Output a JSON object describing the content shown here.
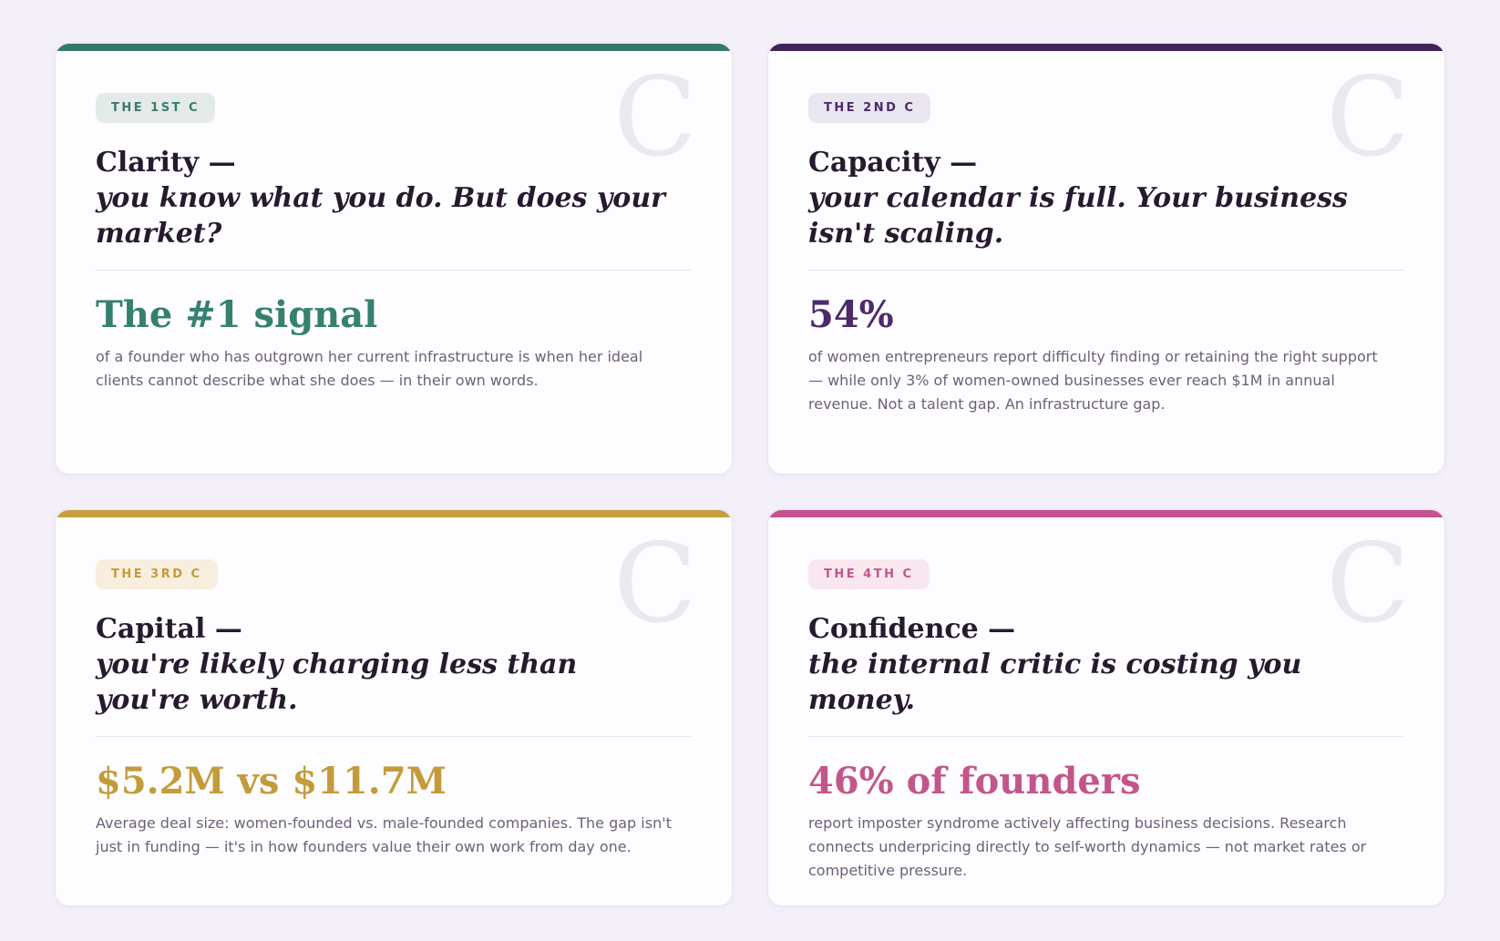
{
  "theme": {
    "page_bg": "#f4f0fa",
    "card_bg": "#fdfcfe",
    "border": "#e9e2f2",
    "divider": "#e8e3ee",
    "heading": "#261a2f",
    "body_text": "#6d6179",
    "watermark": "#ebe8f0"
  },
  "cards": [
    {
      "badge": "THE 1ST C",
      "title_strong": "Clarity —",
      "title_italic": "you know what you do. But does your market?",
      "stat": "The #1 signal",
      "body": "of a founder who has outgrown her current infrastructure is when her ideal clients cannot describe what she does — in their own words.",
      "watermark": "C",
      "colors": {
        "accent": "#35796d",
        "badge_bg": "#e4eae8",
        "badge_text": "#3a7a6e",
        "stat": "#36806f"
      }
    },
    {
      "badge": "THE 2ND C",
      "title_strong": "Capacity —",
      "title_italic": "your calendar is full. Your business isn't scaling.",
      "stat": "54%",
      "body": "of women entrepreneurs report difficulty finding or retaining the right support — while only 3% of women-owned businesses ever reach $1M in annual revenue. Not a talent gap. An infrastructure gap.",
      "watermark": "C",
      "colors": {
        "accent": "#3f2259",
        "badge_bg": "#e9e6ef",
        "badge_text": "#4b2a6b",
        "stat": "#4d2a6b"
      }
    },
    {
      "badge": "THE 3RD C",
      "title_strong": "Capital —",
      "title_italic": "you're likely charging less than you're worth.",
      "stat": "$5.2M vs $11.7M",
      "body": "Average deal size: women-founded vs. male-founded companies. The gap isn't just in funding — it's in how founders value their own work from day one.",
      "watermark": "C",
      "colors": {
        "accent": "#c89e3e",
        "badge_bg": "#f8eedd",
        "badge_text": "#c59b3d",
        "stat": "#c49b3b"
      }
    },
    {
      "badge": "THE 4TH C",
      "title_strong": "Confidence —",
      "title_italic": "the internal critic is costing you money.",
      "stat": "46% of founders",
      "body": "report imposter syndrome actively affecting business decisions. Research connects underpricing directly to self-worth dynamics — not market rates or competitive pressure.",
      "watermark": "C",
      "colors": {
        "accent": "#c4528e",
        "badge_bg": "#f9e7ef",
        "badge_text": "#c4548c",
        "stat": "#c2568b"
      }
    }
  ]
}
